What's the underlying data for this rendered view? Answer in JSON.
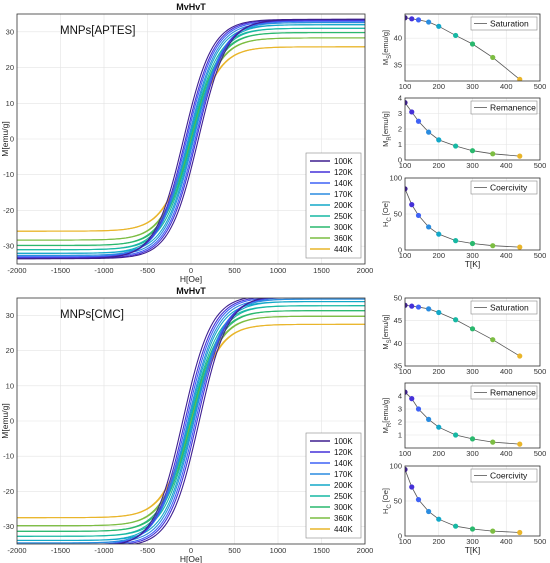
{
  "colors": {
    "100K": "#3e1f8f",
    "120K": "#4530d8",
    "140K": "#3f62f5",
    "170K": "#2a8ce0",
    "200K": "#13a8c8",
    "250K": "#17b8a3",
    "300K": "#2ab86e",
    "360K": "#7cbd42",
    "440K": "#e9b52a"
  },
  "chart_data": [
    {
      "id": "loop_aptes",
      "type": "line",
      "title": "MvHvT",
      "annotation": "MNPs[APTES]",
      "xlabel": "H[Oe]",
      "ylabel": "M[emu/g]",
      "xlim": [
        -2000,
        2000
      ],
      "ylim": [
        -35,
        35
      ],
      "xticks": [
        -2000,
        -1500,
        -1000,
        -500,
        0,
        500,
        1000,
        1500,
        2000
      ],
      "yticks": [
        -30,
        -20,
        -10,
        0,
        10,
        20,
        30
      ],
      "grid": true,
      "legend": "bottom-right",
      "series": [
        {
          "name": "100K",
          "Ms": 33.5,
          "Mr": 3.7,
          "Hc": 85
        },
        {
          "name": "120K",
          "Ms": 33.3,
          "Mr": 3.1,
          "Hc": 63
        },
        {
          "name": "140K",
          "Ms": 33.0,
          "Mr": 2.5,
          "Hc": 48
        },
        {
          "name": "170K",
          "Ms": 32.6,
          "Mr": 1.8,
          "Hc": 32
        },
        {
          "name": "200K",
          "Ms": 32.0,
          "Mr": 1.3,
          "Hc": 22
        },
        {
          "name": "250K",
          "Ms": 31.0,
          "Mr": 0.9,
          "Hc": 13
        },
        {
          "name": "300K",
          "Ms": 29.8,
          "Mr": 0.6,
          "Hc": 9
        },
        {
          "name": "360K",
          "Ms": 28.3,
          "Mr": 0.4,
          "Hc": 6
        },
        {
          "name": "440K",
          "Ms": 25.8,
          "Mr": 0.25,
          "Hc": 4
        }
      ]
    },
    {
      "id": "ms_aptes",
      "type": "scatter",
      "legend_label": "Saturation",
      "ylabel_main": "M",
      "ylabel_sub": "S",
      "ylabel_tail": "[emu/g]",
      "xlim": [
        100,
        500
      ],
      "ylim": [
        32,
        44.5
      ],
      "yticks": [
        35,
        40
      ],
      "xticks": [
        100,
        200,
        300,
        400,
        500
      ],
      "xlabel": "",
      "x": [
        100,
        120,
        140,
        170,
        200,
        250,
        300,
        360,
        440
      ],
      "y": [
        43.8,
        43.6,
        43.4,
        43.0,
        42.2,
        40.5,
        38.9,
        36.4,
        32.3
      ]
    },
    {
      "id": "mr_aptes",
      "type": "scatter",
      "legend_label": "Remanence",
      "ylabel_main": "M",
      "ylabel_sub": "R",
      "ylabel_tail": "[emu/g]",
      "xlim": [
        100,
        500
      ],
      "ylim": [
        0,
        4
      ],
      "yticks": [
        0,
        1,
        2,
        3,
        4
      ],
      "xticks": [
        100,
        200,
        300,
        400,
        500
      ],
      "xlabel": "",
      "x": [
        100,
        120,
        140,
        170,
        200,
        250,
        300,
        360,
        440
      ],
      "y": [
        3.7,
        3.1,
        2.5,
        1.8,
        1.3,
        0.9,
        0.6,
        0.4,
        0.25
      ]
    },
    {
      "id": "hc_aptes",
      "type": "scatter",
      "legend_label": "Coercivity",
      "ylabel_main": "H",
      "ylabel_sub": "C",
      "ylabel_tail": " [Oe]",
      "xlim": [
        100,
        500
      ],
      "ylim": [
        0,
        100
      ],
      "yticks": [
        0,
        50,
        100
      ],
      "xticks": [
        100,
        200,
        300,
        400,
        500
      ],
      "xlabel": "T[K]",
      "x": [
        100,
        120,
        140,
        170,
        200,
        250,
        300,
        360,
        440
      ],
      "y": [
        85,
        63,
        48,
        32,
        22,
        13,
        9,
        6,
        4
      ]
    },
    {
      "id": "loop_cmc",
      "type": "line",
      "title": "MvHvT",
      "annotation": "MNPs[CMC]",
      "xlabel": "H[Oe]",
      "ylabel": "M[emu/g]",
      "xlim": [
        -2000,
        2000
      ],
      "ylim": [
        -35,
        35
      ],
      "xticks": [
        -2000,
        -1500,
        -1000,
        -500,
        0,
        500,
        1000,
        1500,
        2000
      ],
      "yticks": [
        -30,
        -20,
        -10,
        0,
        10,
        20,
        30
      ],
      "grid": true,
      "legend": "bottom-right",
      "series": [
        {
          "name": "100K",
          "Ms": 35.8,
          "Mr": 4.3,
          "Hc": 95
        },
        {
          "name": "120K",
          "Ms": 35.5,
          "Mr": 3.8,
          "Hc": 70
        },
        {
          "name": "140K",
          "Ms": 35.2,
          "Mr": 3.0,
          "Hc": 52
        },
        {
          "name": "170K",
          "Ms": 34.7,
          "Mr": 2.2,
          "Hc": 35
        },
        {
          "name": "200K",
          "Ms": 34.0,
          "Mr": 1.6,
          "Hc": 24
        },
        {
          "name": "250K",
          "Ms": 32.8,
          "Mr": 1.0,
          "Hc": 14
        },
        {
          "name": "300K",
          "Ms": 31.4,
          "Mr": 0.7,
          "Hc": 10
        },
        {
          "name": "360K",
          "Ms": 29.8,
          "Mr": 0.45,
          "Hc": 7
        },
        {
          "name": "440K",
          "Ms": 27.5,
          "Mr": 0.3,
          "Hc": 5
        }
      ]
    },
    {
      "id": "ms_cmc",
      "type": "scatter",
      "legend_label": "Saturation",
      "ylabel_main": "M",
      "ylabel_sub": "S",
      "ylabel_tail": "[emu/g]",
      "xlim": [
        100,
        500
      ],
      "ylim": [
        35,
        50
      ],
      "yticks": [
        35,
        40,
        45,
        50
      ],
      "xticks": [
        100,
        200,
        300,
        400,
        500
      ],
      "xlabel": "",
      "x": [
        100,
        120,
        140,
        170,
        200,
        250,
        300,
        360,
        440
      ],
      "y": [
        48.4,
        48.2,
        48.0,
        47.6,
        46.8,
        45.2,
        43.2,
        40.8,
        37.2
      ]
    },
    {
      "id": "mr_cmc",
      "type": "scatter",
      "legend_label": "Remanence",
      "ylabel_main": "M",
      "ylabel_sub": "R",
      "ylabel_tail": "[emu/g]",
      "xlim": [
        100,
        500
      ],
      "ylim": [
        0,
        5
      ],
      "yticks": [
        1,
        2,
        3,
        4
      ],
      "xticks": [
        100,
        200,
        300,
        400,
        500
      ],
      "xlabel": "",
      "x": [
        100,
        120,
        140,
        170,
        200,
        250,
        300,
        360,
        440
      ],
      "y": [
        4.3,
        3.8,
        3.0,
        2.2,
        1.6,
        1.0,
        0.7,
        0.45,
        0.3
      ]
    },
    {
      "id": "hc_cmc",
      "type": "scatter",
      "legend_label": "Coercivity",
      "ylabel_main": "H",
      "ylabel_sub": "C",
      "ylabel_tail": " [Oe]",
      "xlim": [
        100,
        500
      ],
      "ylim": [
        0,
        100
      ],
      "yticks": [
        0,
        50,
        100
      ],
      "xticks": [
        100,
        200,
        300,
        400,
        500
      ],
      "xlabel": "T[K]",
      "x": [
        100,
        120,
        140,
        170,
        200,
        250,
        300,
        360,
        440
      ],
      "y": [
        95,
        70,
        52,
        35,
        24,
        14,
        10,
        7,
        5
      ]
    }
  ]
}
